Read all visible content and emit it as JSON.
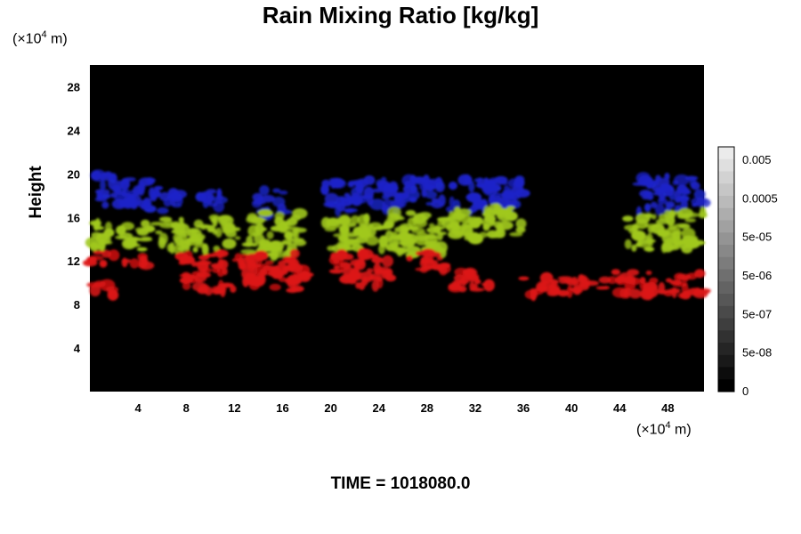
{
  "chart_data": {
    "type": "heatmap",
    "title": "Rain Mixing Ratio [kg/kg]",
    "ylabel": "Height",
    "x_unit": {
      "prefix": "(×10",
      "exp": "4",
      "suffix": " m)"
    },
    "y_unit": {
      "prefix": "(×10",
      "exp": "4",
      "suffix": " m)"
    },
    "xlim": [
      0,
      51
    ],
    "ylim": [
      0,
      30
    ],
    "x_ticks": [
      "4",
      "8",
      "12",
      "16",
      "20",
      "24",
      "28",
      "32",
      "36",
      "40",
      "44",
      "48"
    ],
    "y_ticks": [
      "4",
      "8",
      "12",
      "16",
      "20",
      "24",
      "28"
    ],
    "colorbar": {
      "labels": [
        "0.005",
        "0.0005",
        "5e-05",
        "5e-06",
        "5e-07",
        "5e-08",
        "0"
      ]
    },
    "series": [
      {
        "color": "#1c24c8",
        "blobs": [
          {
            "x": [
              0.3,
              2.5
            ],
            "y": [
              17,
              20
            ]
          },
          {
            "x": [
              2.5,
              7.5
            ],
            "y": [
              16.5,
              19.5
            ]
          },
          {
            "x": [
              9,
              11
            ],
            "y": [
              16.5,
              18.5
            ]
          },
          {
            "x": [
              13.8,
              16.2
            ],
            "y": [
              16,
              18.5
            ]
          },
          {
            "x": [
              19.5,
              27
            ],
            "y": [
              16.5,
              19.5
            ]
          },
          {
            "x": [
              27,
              36
            ],
            "y": [
              16.5,
              19.5
            ]
          },
          {
            "x": [
              45.5,
              51
            ],
            "y": [
              16.5,
              19.8
            ]
          }
        ]
      },
      {
        "color": "#a0c81c",
        "blobs": [
          {
            "x": [
              0,
              2
            ],
            "y": [
              13,
              15.5
            ]
          },
          {
            "x": [
              2.5,
              5
            ],
            "y": [
              13,
              15.5
            ]
          },
          {
            "x": [
              5.5,
              8
            ],
            "y": [
              13,
              16
            ]
          },
          {
            "x": [
              8.5,
              12.5
            ],
            "y": [
              13,
              16
            ]
          },
          {
            "x": [
              13,
              17.5
            ],
            "y": [
              12.5,
              16.5
            ]
          },
          {
            "x": [
              19.5,
              25
            ],
            "y": [
              13,
              16
            ]
          },
          {
            "x": [
              25,
              30
            ],
            "y": [
              12.5,
              16.5
            ]
          },
          {
            "x": [
              30,
              36
            ],
            "y": [
              14,
              17
            ]
          },
          {
            "x": [
              44.5,
              51
            ],
            "y": [
              13,
              16.5
            ]
          }
        ]
      },
      {
        "color": "#dc1414",
        "blobs": [
          {
            "x": [
              0,
              2
            ],
            "y": [
              11.5,
              13
            ]
          },
          {
            "x": [
              2.8,
              4.7
            ],
            "y": [
              11.5,
              12.8
            ]
          },
          {
            "x": [
              0,
              2
            ],
            "y": [
              8.7,
              10
            ]
          },
          {
            "x": [
              7.5,
              18
            ],
            "y": [
              9.2,
              12.7
            ]
          },
          {
            "x": [
              20,
              25
            ],
            "y": [
              9.5,
              12.7
            ]
          },
          {
            "x": [
              26.5,
              29.5
            ],
            "y": [
              11,
              13
            ]
          },
          {
            "x": [
              30,
              33.5
            ],
            "y": [
              9,
              11
            ]
          },
          {
            "x": [
              36,
              43
            ],
            "y": [
              8.8,
              10.5
            ]
          },
          {
            "x": [
              43,
              51
            ],
            "y": [
              8.8,
              11
            ]
          }
        ]
      }
    ]
  },
  "footer": {
    "time_label": "TIME = 1018080.0"
  }
}
